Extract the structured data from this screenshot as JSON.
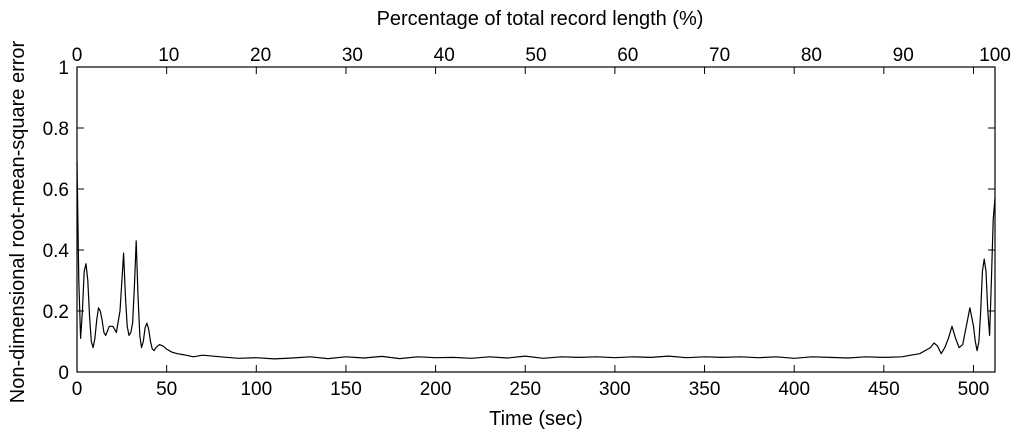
{
  "chart_data": {
    "type": "line",
    "title": "",
    "xlabel": "Time (sec)",
    "ylabel": "Non-dimensional root-mean-square error",
    "top_xlabel": "Percentage of total record length (%)",
    "xlim": [
      0,
      512
    ],
    "ylim": [
      0,
      1
    ],
    "top_xlim": [
      0,
      100
    ],
    "grid": false,
    "legend": "none",
    "line_color": "#000000",
    "x_ticks": [
      0,
      50,
      100,
      150,
      200,
      250,
      300,
      350,
      400,
      450,
      500
    ],
    "x_tick_labels": [
      "0",
      "50",
      "100",
      "150",
      "200",
      "250",
      "300",
      "350",
      "400",
      "450",
      "500"
    ],
    "y_ticks": [
      0,
      0.2,
      0.4,
      0.6,
      0.8,
      1
    ],
    "y_tick_labels": [
      "0",
      "0.2",
      "0.4",
      "0.6",
      "0.8",
      "1"
    ],
    "top_ticks": [
      0,
      10,
      20,
      30,
      40,
      50,
      60,
      70,
      80,
      90,
      100
    ],
    "top_tick_labels": [
      "0",
      "10",
      "20",
      "30",
      "40",
      "50",
      "60",
      "70",
      "80",
      "90",
      "100"
    ],
    "series": [
      {
        "x": [
          0,
          1,
          2,
          3,
          4,
          5,
          6,
          7,
          8,
          9,
          10,
          11,
          12,
          13,
          14,
          15,
          16,
          18,
          20,
          22,
          24,
          26,
          27,
          28,
          29,
          30,
          31,
          32,
          33,
          34,
          35,
          36,
          37,
          38,
          39,
          40,
          41,
          42,
          43,
          44,
          46,
          48,
          50,
          53,
          56,
          60,
          65,
          70,
          80,
          90,
          100,
          110,
          120,
          130,
          140,
          150,
          160,
          170,
          180,
          190,
          200,
          210,
          220,
          230,
          240,
          250,
          260,
          270,
          280,
          290,
          300,
          310,
          320,
          330,
          340,
          350,
          360,
          370,
          380,
          390,
          400,
          410,
          420,
          430,
          440,
          450,
          460,
          465,
          470,
          473,
          476,
          478,
          480,
          482,
          484,
          486,
          488,
          490,
          492,
          494,
          496,
          498,
          500,
          501,
          502,
          503,
          504,
          505,
          506,
          507,
          508,
          509,
          510,
          511,
          512
        ],
        "y": [
          0.69,
          0.3,
          0.11,
          0.2,
          0.33,
          0.355,
          0.3,
          0.18,
          0.1,
          0.08,
          0.11,
          0.17,
          0.21,
          0.2,
          0.17,
          0.13,
          0.12,
          0.15,
          0.15,
          0.13,
          0.2,
          0.39,
          0.25,
          0.15,
          0.12,
          0.13,
          0.16,
          0.28,
          0.43,
          0.25,
          0.12,
          0.08,
          0.1,
          0.145,
          0.16,
          0.14,
          0.1,
          0.075,
          0.07,
          0.08,
          0.09,
          0.085,
          0.075,
          0.065,
          0.06,
          0.056,
          0.05,
          0.055,
          0.05,
          0.045,
          0.047,
          0.043,
          0.046,
          0.05,
          0.044,
          0.05,
          0.046,
          0.051,
          0.044,
          0.05,
          0.047,
          0.048,
          0.045,
          0.05,
          0.046,
          0.052,
          0.045,
          0.05,
          0.048,
          0.05,
          0.047,
          0.05,
          0.048,
          0.052,
          0.047,
          0.05,
          0.048,
          0.05,
          0.047,
          0.05,
          0.045,
          0.05,
          0.048,
          0.046,
          0.05,
          0.048,
          0.05,
          0.055,
          0.06,
          0.07,
          0.08,
          0.095,
          0.085,
          0.06,
          0.08,
          0.11,
          0.15,
          0.11,
          0.08,
          0.09,
          0.15,
          0.21,
          0.15,
          0.1,
          0.07,
          0.1,
          0.2,
          0.33,
          0.37,
          0.33,
          0.2,
          0.12,
          0.3,
          0.5,
          0.57
        ]
      }
    ]
  }
}
